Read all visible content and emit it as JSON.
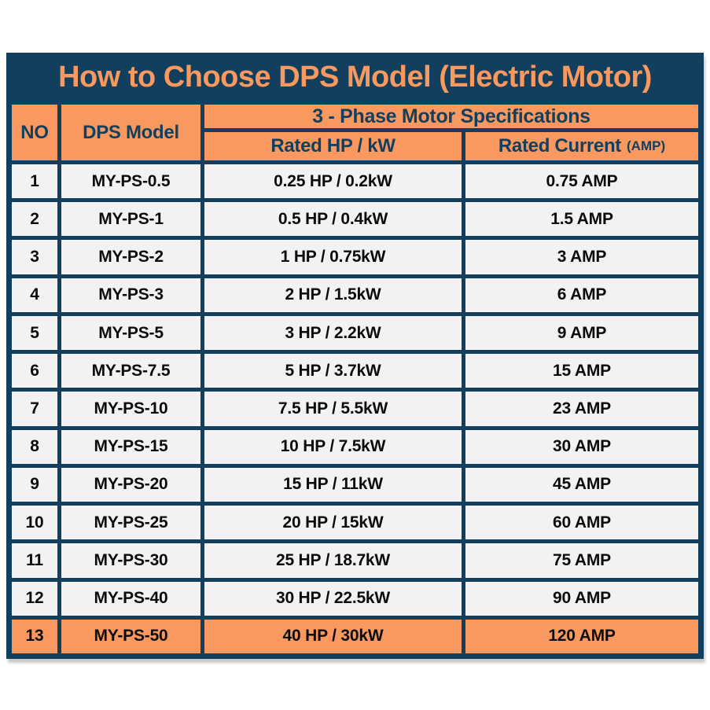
{
  "title": "How to Choose DPS Model (Electric Motor)",
  "header": {
    "no": "NO",
    "model": "DPS Model",
    "specs_group": "3 - Phase Motor Specifications",
    "rated_hp": "Rated HP / kW",
    "rated_current": "Rated Current",
    "rated_current_unit": "(AMP)"
  },
  "chart_data": {
    "type": "table",
    "title": "How to Choose DPS Model (Electric Motor)",
    "column_group": {
      "label": "3 - Phase Motor Specifications",
      "spans": [
        "Rated HP / kW",
        "Rated Current (AMP)"
      ]
    },
    "columns": [
      "NO",
      "DPS Model",
      "Rated HP / kW",
      "Rated Current (AMP)"
    ],
    "rows": [
      {
        "no": "1",
        "model": "MY-PS-0.5",
        "hp_kw": "0.25 HP / 0.2kW",
        "current": "0.75 AMP",
        "highlighted": false
      },
      {
        "no": "2",
        "model": "MY-PS-1",
        "hp_kw": "0.5 HP / 0.4kW",
        "current": "1.5 AMP",
        "highlighted": false
      },
      {
        "no": "3",
        "model": "MY-PS-2",
        "hp_kw": "1 HP / 0.75kW",
        "current": "3 AMP",
        "highlighted": false
      },
      {
        "no": "4",
        "model": "MY-PS-3",
        "hp_kw": "2 HP / 1.5kW",
        "current": "6 AMP",
        "highlighted": false
      },
      {
        "no": "5",
        "model": "MY-PS-5",
        "hp_kw": "3 HP / 2.2kW",
        "current": "9 AMP",
        "highlighted": false
      },
      {
        "no": "6",
        "model": "MY-PS-7.5",
        "hp_kw": "5 HP / 3.7kW",
        "current": "15 AMP",
        "highlighted": false
      },
      {
        "no": "7",
        "model": "MY-PS-10",
        "hp_kw": "7.5 HP / 5.5kW",
        "current": "23 AMP",
        "highlighted": false
      },
      {
        "no": "8",
        "model": "MY-PS-15",
        "hp_kw": "10 HP / 7.5kW",
        "current": "30 AMP",
        "highlighted": false
      },
      {
        "no": "9",
        "model": "MY-PS-20",
        "hp_kw": "15 HP / 11kW",
        "current": "45 AMP",
        "highlighted": false
      },
      {
        "no": "10",
        "model": "MY-PS-25",
        "hp_kw": "20 HP / 15kW",
        "current": "60 AMP",
        "highlighted": false
      },
      {
        "no": "11",
        "model": "MY-PS-30",
        "hp_kw": "25 HP / 18.7kW",
        "current": "75 AMP",
        "highlighted": false
      },
      {
        "no": "12",
        "model": "MY-PS-40",
        "hp_kw": "30 HP / 22.5kW",
        "current": "90 AMP",
        "highlighted": false
      },
      {
        "no": "13",
        "model": "MY-PS-50",
        "hp_kw": "40 HP / 30kW",
        "current": "120 AMP",
        "highlighted": true
      }
    ]
  },
  "colors": {
    "navy": "#123F5D",
    "orange": "#F9995F",
    "row_bg": "#F2F2F2",
    "body_text": "#0B0B0B",
    "page_bg": "#FFFFFF"
  }
}
